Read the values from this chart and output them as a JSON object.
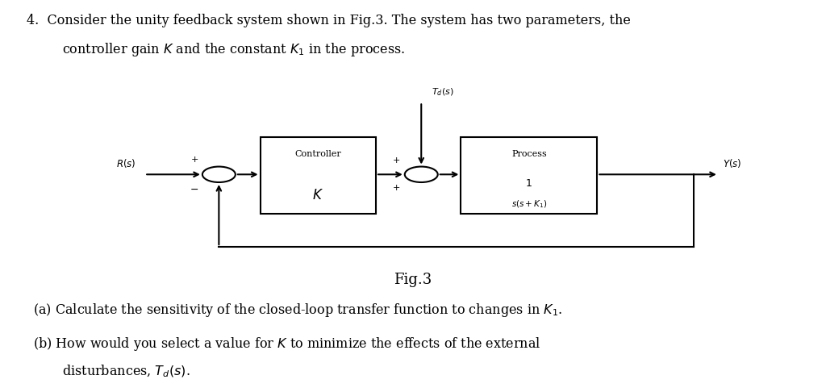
{
  "bg_color": "#ffffff",
  "text_color": "#000000",
  "line_color": "#000000",
  "figsize": [
    10.24,
    4.86
  ],
  "dpi": 100,
  "fig_label": "Fig.3",
  "block_controller_label": "Controller",
  "block_controller_k": "$K$",
  "block_process_label": "Process",
  "R_label": "$R(s)$",
  "Y_label": "$Y(s)$",
  "Td_label": "$T_d(s)$",
  "line1": "4.  Consider the unity feedback system shown in Fig.3. The system has two parameters, the",
  "line2": "controller gain $K$ and the constant $K_1$ in the process.",
  "qa": "(a) Calculate the sensitivity of the closed-loop transfer function to changes in $K_1$.",
  "qb1": "(b) How would you select a value for $K$ to minimize the effects of the external",
  "qb2": "disturbances, $T_d(s)$."
}
